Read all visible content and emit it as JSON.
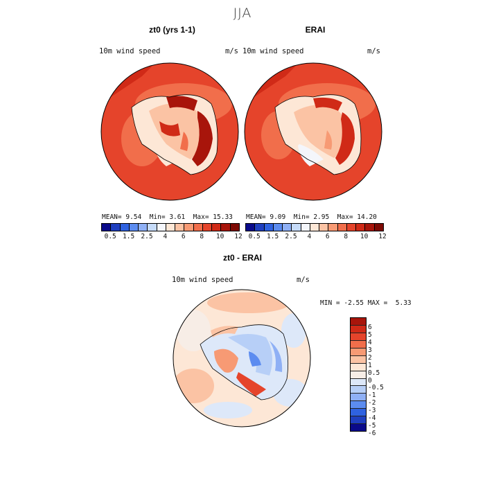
{
  "figure_title": "JJA",
  "panels": {
    "left": {
      "title": "zt0 (yrs 1-1)",
      "variable": "10m wind speed",
      "units": "m/s",
      "mean_label": "MEAN=",
      "mean": "9.54",
      "min_label": "Min=",
      "min": "3.61",
      "max_label": "Max=",
      "max": "15.33"
    },
    "right": {
      "title": "ERAI",
      "variable": "10m wind speed",
      "units": "m/s",
      "mean_label": "MEAN=",
      "mean": "9.09",
      "min_label": "Min=",
      "min": "2.95",
      "max_label": "Max=",
      "max": "14.20"
    },
    "diff": {
      "title": "zt0 - ERAI",
      "variable": "10m wind speed",
      "units": "m/s",
      "min_label": "MIN =",
      "min": "-2.55",
      "max_label": "MAX =",
      "max": "5.33"
    }
  },
  "speed_colorbar": {
    "ticks": [
      "0.5",
      "1.5",
      "2.5",
      "4",
      "6",
      "8",
      "10",
      "12"
    ],
    "colors": [
      "#0a0a8a",
      "#1f3fbf",
      "#2f62e0",
      "#5c8cf0",
      "#8fb0f5",
      "#c6dbf9",
      "#f4f6fb",
      "#fde7d6",
      "#fbc3a4",
      "#f79a74",
      "#f16e4b",
      "#e5442b",
      "#d02a17",
      "#a8150b",
      "#7d0a04"
    ]
  },
  "diff_colorbar": {
    "labels": [
      "6",
      "5",
      "4",
      "3",
      "2",
      "1",
      "0.5",
      "0",
      "-0.5",
      "-1",
      "-2",
      "-3",
      "-4",
      "-5",
      "-6"
    ],
    "colors": [
      "#a8150b",
      "#d02a17",
      "#e5442b",
      "#f16e4b",
      "#f79a74",
      "#fbc3a4",
      "#fde7d6",
      "#f7ede6",
      "#dde8f9",
      "#b7cff7",
      "#8fb0f5",
      "#5c8cf0",
      "#2f62e0",
      "#1f3fbf",
      "#0a0a8a"
    ]
  }
}
